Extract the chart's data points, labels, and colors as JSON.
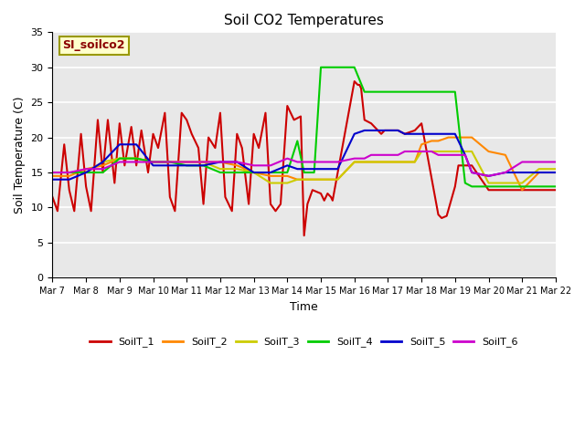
{
  "title": "Soil CO2 Temperatures",
  "xlabel": "Time",
  "ylabel": "Soil Temperature (C)",
  "ylim": [
    0,
    35
  ],
  "xlim": [
    0,
    15
  ],
  "annotation": "SI_soilco2",
  "background_color": "#e8e8e8",
  "grid_color": "white",
  "series": {
    "SoilT_1": {
      "color": "#cc0000",
      "x": [
        0.0,
        0.15,
        0.35,
        0.5,
        0.65,
        0.85,
        1.0,
        1.15,
        1.35,
        1.5,
        1.65,
        1.85,
        2.0,
        2.15,
        2.35,
        2.5,
        2.65,
        2.85,
        3.0,
        3.15,
        3.35,
        3.5,
        3.65,
        3.85,
        4.0,
        4.15,
        4.35,
        4.5,
        4.65,
        4.85,
        5.0,
        5.15,
        5.35,
        5.5,
        5.65,
        5.85,
        6.0,
        6.15,
        6.35,
        6.5,
        6.65,
        6.8,
        7.0,
        7.2,
        7.4,
        7.5,
        7.6,
        7.75,
        8.0,
        8.05,
        8.1,
        8.2,
        8.3,
        8.35,
        9.0,
        9.1,
        9.15,
        9.2,
        9.3,
        9.5,
        9.6,
        9.7,
        9.8,
        9.9,
        10.0,
        10.1,
        10.2,
        10.3,
        10.5,
        10.8,
        11.0,
        11.5,
        11.6,
        11.75,
        12.0,
        12.1,
        12.3,
        12.5,
        13.0,
        13.5,
        14.0,
        15.0
      ],
      "y": [
        11.5,
        9.5,
        19.0,
        12.5,
        9.5,
        20.5,
        13.0,
        9.5,
        22.5,
        15.0,
        22.5,
        13.5,
        22.0,
        16.0,
        21.5,
        16.0,
        21.0,
        15.0,
        20.5,
        18.5,
        23.5,
        11.5,
        9.5,
        23.5,
        22.5,
        20.5,
        18.5,
        10.5,
        20.0,
        18.5,
        23.5,
        11.5,
        9.5,
        20.5,
        18.5,
        10.5,
        20.5,
        18.5,
        23.5,
        10.5,
        9.5,
        10.5,
        24.5,
        22.5,
        23.0,
        6.0,
        10.5,
        12.5,
        12.0,
        11.5,
        11.0,
        12.0,
        11.5,
        11.0,
        28.0,
        27.5,
        27.5,
        27.0,
        22.5,
        22.0,
        21.5,
        21.0,
        20.5,
        21.0,
        21.0,
        21.0,
        21.0,
        21.0,
        20.5,
        21.0,
        22.0,
        9.0,
        8.5,
        8.8,
        13.0,
        16.0,
        16.0,
        16.0,
        12.5,
        12.5,
        12.5,
        12.5
      ]
    },
    "SoilT_2": {
      "color": "#ff8800",
      "x": [
        0.0,
        0.5,
        1.0,
        1.5,
        2.0,
        2.5,
        3.0,
        3.5,
        4.0,
        4.5,
        5.0,
        5.5,
        6.0,
        6.5,
        7.0,
        7.3,
        7.5,
        8.0,
        8.5,
        9.0,
        9.3,
        9.5,
        9.8,
        10.0,
        10.3,
        10.5,
        10.8,
        11.0,
        11.3,
        11.5,
        11.8,
        12.0,
        12.3,
        12.5,
        13.0,
        13.5,
        14.0,
        14.5,
        15.0
      ],
      "y": [
        14.5,
        14.5,
        15.5,
        16.0,
        17.0,
        17.0,
        16.5,
        16.5,
        16.5,
        16.5,
        16.5,
        16.0,
        15.0,
        14.5,
        14.5,
        14.0,
        14.0,
        14.0,
        14.0,
        16.5,
        16.5,
        16.5,
        16.5,
        16.5,
        16.5,
        16.5,
        16.5,
        19.0,
        19.5,
        19.5,
        20.0,
        20.0,
        20.0,
        20.0,
        18.0,
        17.5,
        12.5,
        15.0,
        15.0
      ]
    },
    "SoilT_3": {
      "color": "#cccc00",
      "x": [
        0.0,
        0.5,
        1.0,
        1.5,
        2.0,
        2.5,
        3.0,
        3.5,
        4.0,
        4.5,
        5.0,
        5.5,
        6.0,
        6.5,
        7.0,
        7.3,
        7.5,
        8.0,
        8.5,
        9.0,
        9.3,
        9.5,
        9.8,
        10.0,
        10.3,
        10.5,
        10.8,
        11.0,
        11.3,
        11.5,
        11.8,
        12.0,
        12.3,
        12.5,
        13.0,
        13.5,
        14.0,
        14.5,
        15.0
      ],
      "y": [
        15.0,
        15.0,
        15.0,
        16.5,
        17.0,
        17.0,
        16.5,
        16.5,
        16.5,
        16.5,
        15.5,
        15.5,
        15.0,
        13.5,
        13.5,
        14.0,
        14.0,
        14.0,
        14.0,
        16.5,
        16.5,
        16.5,
        16.5,
        16.5,
        16.5,
        16.5,
        16.5,
        18.0,
        18.0,
        18.0,
        18.0,
        18.0,
        18.0,
        18.0,
        13.5,
        13.5,
        13.5,
        15.5,
        15.5
      ]
    },
    "SoilT_4": {
      "color": "#00cc00",
      "x": [
        0.0,
        0.5,
        1.0,
        1.5,
        2.0,
        2.5,
        3.0,
        3.5,
        4.0,
        4.5,
        5.0,
        5.5,
        6.0,
        6.5,
        7.0,
        7.3,
        7.5,
        7.8,
        8.0,
        8.5,
        9.0,
        9.3,
        9.5,
        9.8,
        10.0,
        10.3,
        10.5,
        11.0,
        11.3,
        11.5,
        11.8,
        12.0,
        12.3,
        12.5,
        13.0,
        13.5,
        14.0,
        14.5,
        15.0
      ],
      "y": [
        15.0,
        15.0,
        15.0,
        15.0,
        17.0,
        17.0,
        16.5,
        16.5,
        16.0,
        16.0,
        15.0,
        15.0,
        15.0,
        15.0,
        15.0,
        19.5,
        15.0,
        15.0,
        30.0,
        30.0,
        30.0,
        26.5,
        26.5,
        26.5,
        26.5,
        26.5,
        26.5,
        26.5,
        26.5,
        26.5,
        26.5,
        26.5,
        13.5,
        13.0,
        13.0,
        13.0,
        13.0,
        13.0,
        13.0
      ]
    },
    "SoilT_5": {
      "color": "#0000cc",
      "x": [
        0.0,
        0.5,
        1.0,
        1.5,
        2.0,
        2.5,
        3.0,
        3.5,
        4.0,
        4.5,
        5.0,
        5.5,
        6.0,
        6.5,
        7.0,
        7.3,
        7.5,
        8.0,
        8.5,
        9.0,
        9.3,
        9.5,
        9.8,
        10.0,
        10.3,
        10.5,
        10.8,
        11.0,
        11.3,
        11.5,
        11.8,
        12.0,
        12.3,
        12.5,
        13.0,
        13.5,
        14.0,
        14.5,
        15.0
      ],
      "y": [
        14.0,
        14.0,
        15.0,
        16.5,
        19.0,
        19.0,
        16.0,
        16.0,
        16.0,
        16.0,
        16.5,
        16.5,
        15.0,
        15.0,
        16.0,
        15.5,
        15.5,
        15.5,
        15.5,
        20.5,
        21.0,
        21.0,
        21.0,
        21.0,
        21.0,
        20.5,
        20.5,
        20.5,
        20.5,
        20.5,
        20.5,
        20.5,
        17.5,
        15.0,
        14.5,
        15.0,
        15.0,
        15.0,
        15.0
      ]
    },
    "SoilT_6": {
      "color": "#cc00cc",
      "x": [
        0.0,
        0.5,
        1.0,
        1.5,
        2.0,
        2.5,
        3.0,
        3.5,
        4.0,
        4.5,
        5.0,
        5.5,
        6.0,
        6.5,
        7.0,
        7.3,
        7.5,
        8.0,
        8.5,
        9.0,
        9.3,
        9.5,
        9.8,
        10.0,
        10.3,
        10.5,
        10.8,
        11.0,
        11.3,
        11.5,
        11.8,
        12.0,
        12.3,
        12.5,
        13.0,
        13.5,
        14.0,
        14.5,
        15.0
      ],
      "y": [
        15.0,
        15.0,
        15.5,
        15.5,
        16.5,
        16.5,
        16.5,
        16.5,
        16.5,
        16.5,
        16.5,
        16.5,
        16.0,
        16.0,
        17.0,
        16.5,
        16.5,
        16.5,
        16.5,
        17.0,
        17.0,
        17.5,
        17.5,
        17.5,
        17.5,
        18.0,
        18.0,
        18.0,
        18.0,
        17.5,
        17.5,
        17.5,
        17.5,
        15.0,
        14.5,
        15.0,
        16.5,
        16.5,
        16.5
      ]
    }
  },
  "xtick_positions": [
    0,
    1,
    2,
    3,
    4,
    5,
    6,
    7,
    8,
    9,
    10,
    11,
    12,
    13,
    14,
    15
  ],
  "xtick_labels": [
    "Mar 7",
    "Mar 8",
    "Mar 9",
    "Mar 10",
    "Mar 11",
    "Mar 12",
    "Mar 13",
    "Mar 14",
    "Mar 15",
    "Mar 16",
    "Mar 17",
    "Mar 18",
    "Mar 19",
    "Mar 20",
    "Mar 21",
    "Mar 22"
  ],
  "ytick_positions": [
    0,
    5,
    10,
    15,
    20,
    25,
    30,
    35
  ],
  "legend_entries": [
    "SoilT_1",
    "SoilT_2",
    "SoilT_3",
    "SoilT_4",
    "SoilT_5",
    "SoilT_6"
  ],
  "legend_colors": [
    "#cc0000",
    "#ff8800",
    "#cccc00",
    "#00cc00",
    "#0000cc",
    "#cc00cc"
  ]
}
